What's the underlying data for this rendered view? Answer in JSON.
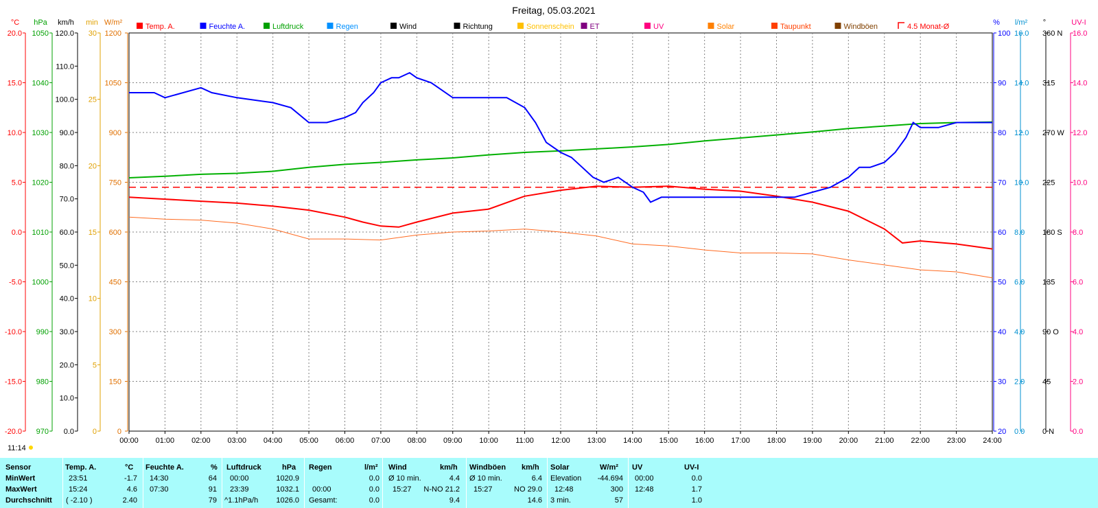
{
  "chart_data": {
    "type": "line",
    "title": "Freitag, 05.03.2021",
    "x_ticks": [
      "00:00",
      "01:00",
      "02:00",
      "03:00",
      "04:00",
      "05:00",
      "06:00",
      "07:00",
      "08:00",
      "09:00",
      "10:00",
      "11:00",
      "12:00",
      "13:00",
      "14:00",
      "15:00",
      "16:00",
      "17:00",
      "18:00",
      "19:00",
      "20:00",
      "21:00",
      "22:00",
      "23:00",
      "24:00"
    ],
    "xlim": [
      0,
      24
    ],
    "left_axes": [
      {
        "unit": "°C",
        "color": "#ff0000",
        "range": [
          -20,
          20
        ],
        "ticks": [
          "20.0",
          "15.0",
          "10.0",
          "5.0",
          "0.0",
          "-5.0",
          "-10.0",
          "-15.0",
          "-20.0"
        ]
      },
      {
        "unit": "hPa",
        "color": "#00a000",
        "range": [
          970,
          1050
        ],
        "ticks": [
          "1050",
          "1040",
          "1030",
          "1020",
          "1010",
          "1000",
          "990",
          "980",
          "970"
        ]
      },
      {
        "unit": "km/h",
        "color": "#000000",
        "range": [
          0,
          120
        ],
        "ticks": [
          "120.0",
          "110.0",
          "100.0",
          "90.0",
          "80.0",
          "70.0",
          "60.0",
          "50.0",
          "40.0",
          "30.0",
          "20.0",
          "10.0",
          "0.0"
        ]
      },
      {
        "unit": "min",
        "color": "#e0a000",
        "range": [
          0,
          30
        ],
        "ticks": [
          "30",
          "25",
          "20",
          "15",
          "10",
          "5",
          "0"
        ]
      },
      {
        "unit": "W/m²",
        "color": "#e07000",
        "range": [
          0,
          1200
        ],
        "ticks": [
          "1200",
          "1050",
          "900",
          "750",
          "600",
          "450",
          "300",
          "150",
          "0"
        ]
      }
    ],
    "right_axes": [
      {
        "unit": "%",
        "color": "#0000ff",
        "range": [
          20,
          100
        ],
        "ticks": [
          "100",
          "90",
          "80",
          "70",
          "60",
          "50",
          "40",
          "30",
          "20"
        ]
      },
      {
        "unit": "l/m²",
        "color": "#0090d0",
        "range": [
          0,
          16
        ],
        "ticks": [
          "16.0",
          "14.0",
          "12.0",
          "10.0",
          "8.0",
          "6.0",
          "4.0",
          "2.0",
          "0.0"
        ]
      },
      {
        "unit": "°",
        "color": "#000000",
        "range": [
          0,
          360
        ],
        "ticks": [
          "360 N",
          "315",
          "270 W",
          "225",
          "180 S",
          "135",
          "90 O",
          "45",
          "0 N"
        ]
      },
      {
        "unit": "UV-I",
        "color": "#ff0080",
        "range": [
          0,
          16
        ],
        "ticks": [
          "16.0",
          "14.0",
          "12.0",
          "10.0",
          "8.0",
          "6.0",
          "4.0",
          "2.0",
          "0.0"
        ]
      }
    ],
    "legend": [
      {
        "name": "Temp. A.",
        "color": "#ff0000"
      },
      {
        "name": "Feuchte A.",
        "color": "#0000ff"
      },
      {
        "name": "Luftdruck",
        "color": "#00a000"
      },
      {
        "name": "Regen",
        "color": "#0090ff"
      },
      {
        "name": "Wind",
        "color": "#000000"
      },
      {
        "name": "Richtung",
        "color": "#000000"
      },
      {
        "name": "Sonnenschein",
        "color": "#ffc000"
      },
      {
        "name": "ET",
        "color": "#800080"
      },
      {
        "name": "UV",
        "color": "#ff0080"
      },
      {
        "name": "Solar",
        "color": "#ff8000"
      },
      {
        "name": "Taupunkt",
        "color": "#ff4000"
      },
      {
        "name": "Windböen",
        "color": "#804000"
      },
      {
        "name": "4.5 Monat-Ø",
        "color": "#ff0000"
      }
    ],
    "series": [
      {
        "name": "Temp. A.",
        "color": "#ff0000",
        "axis": "°C",
        "x": [
          0,
          1,
          2,
          3,
          4,
          5,
          6,
          6.5,
          7,
          7.5,
          8,
          9,
          10,
          11,
          12,
          13,
          14,
          15,
          16,
          17,
          18,
          19,
          20,
          21,
          21.5,
          22,
          23,
          24
        ],
        "y": [
          3.5,
          3.3,
          3.1,
          2.9,
          2.6,
          2.2,
          1.5,
          1.0,
          0.6,
          0.5,
          1.0,
          1.9,
          2.3,
          3.6,
          4.2,
          4.6,
          4.5,
          4.6,
          4.3,
          4.1,
          3.6,
          3.0,
          2.1,
          0.3,
          -1.1,
          -0.9,
          -1.2,
          -1.7
        ]
      },
      {
        "name": "Taupunkt",
        "color": "#ff6a20",
        "axis": "°C",
        "x": [
          0,
          1,
          2,
          3,
          4,
          5,
          6,
          7,
          8,
          9,
          10,
          11,
          12,
          13,
          14,
          15,
          16,
          17,
          18,
          19,
          20,
          21,
          22,
          23,
          24
        ],
        "y": [
          1.5,
          1.3,
          1.2,
          0.9,
          0.3,
          -0.7,
          -0.7,
          -0.8,
          -0.3,
          0.0,
          0.1,
          0.3,
          0.0,
          -0.4,
          -1.2,
          -1.4,
          -1.8,
          -2.1,
          -2.1,
          -2.2,
          -2.8,
          -3.3,
          -3.8,
          -4.0,
          -4.6
        ]
      },
      {
        "name": "Luftdruck",
        "color": "#00b000",
        "axis": "hPa",
        "x": [
          0,
          1,
          2,
          3,
          4,
          5,
          6,
          7,
          8,
          9,
          10,
          11,
          12,
          13,
          14,
          15,
          16,
          17,
          18,
          19,
          20,
          21,
          22,
          23,
          24
        ],
        "y": [
          1020.9,
          1021.2,
          1021.6,
          1021.8,
          1022.2,
          1023.0,
          1023.6,
          1024.0,
          1024.5,
          1024.9,
          1025.5,
          1026.0,
          1026.3,
          1026.7,
          1027.1,
          1027.6,
          1028.3,
          1028.9,
          1029.5,
          1030.1,
          1030.8,
          1031.3,
          1031.8,
          1032.0,
          1032.1
        ]
      },
      {
        "name": "Feuchte A.",
        "color": "#0000ff",
        "axis": "%",
        "x": [
          0,
          0.7,
          1,
          2,
          2.3,
          3,
          4,
          4.5,
          5,
          5.5,
          6,
          6.3,
          6.5,
          6.8,
          7,
          7.3,
          7.5,
          7.8,
          8,
          8.4,
          9,
          9.5,
          10,
          10.5,
          11,
          11.3,
          11.6,
          12,
          12.3,
          12.6,
          12.9,
          13.2,
          13.6,
          14,
          14.3,
          14.5,
          14.8,
          15.2,
          15.6,
          16,
          16.5,
          17,
          17.5,
          18,
          18.5,
          19,
          19.5,
          20,
          20.3,
          20.6,
          21,
          21.3,
          21.6,
          21.8,
          22,
          22.5,
          23,
          23.5,
          24
        ],
        "y": [
          88,
          88,
          87,
          89,
          88,
          87,
          86,
          85,
          82,
          82,
          83,
          84,
          86,
          88,
          90,
          91,
          91,
          92,
          91,
          90,
          87,
          87,
          87,
          87,
          85,
          82,
          78,
          76,
          75,
          73,
          71,
          70,
          71,
          69,
          68,
          66,
          67,
          67,
          67,
          67,
          67,
          67,
          67,
          67,
          67,
          68,
          69,
          71,
          73,
          73,
          74,
          76,
          79,
          82,
          81,
          81,
          82,
          82,
          82
        ]
      }
    ],
    "reference_line": {
      "name": "4.5 Monat-Ø",
      "axis": "°C",
      "value": 4.5
    },
    "time_start": "11:14"
  },
  "stats": {
    "headers": {
      "sensor": "Sensor",
      "temp": "Temp. A.",
      "temp_unit": "°C",
      "hum": "Feuchte A.",
      "hum_unit": "%",
      "press": "Luftdruck",
      "press_unit": "hPa",
      "rain": "Regen",
      "rain_unit": "l/m²",
      "wind": "Wind",
      "wind_unit": "km/h",
      "gust": "Windböen",
      "gust_unit": "km/h",
      "solar": "Solar",
      "solar_unit": "W/m²",
      "uv": "UV",
      "uvi": "UV-I"
    },
    "row_labels": {
      "min": "MinWert",
      "max": "MaxWert",
      "avg": "Durchschnitt"
    },
    "temp": {
      "min_time": "23:51",
      "min_val": "-1.7",
      "max_time": "15:24",
      "max_val": "4.6",
      "avg_extra": "( -2.10 )",
      "avg_val": "2.40"
    },
    "hum": {
      "min_time": "14:30",
      "min_val": "64",
      "max_time": "07:30",
      "max_val": "91",
      "avg_val": "79"
    },
    "press": {
      "min_time": "00:00",
      "min_val": "1020.9",
      "max_time": "23:39",
      "max_val": "1032.1",
      "avg_extra": "^1.1hPa/h",
      "avg_val": "1026.0"
    },
    "rain": {
      "min_val": "0.0",
      "max_time": "00:00",
      "max_val": "0.0",
      "avg_label": "Gesamt:",
      "avg_val": "0.0"
    },
    "wind": {
      "min_label": "Ø 10 min.",
      "min_val": "4.4",
      "max_time": "15:27",
      "max_dir": "N-NO 21.2",
      "avg_val": "9.4"
    },
    "gust": {
      "min_label": "Ø 10 min.",
      "min_val": "6.4",
      "max_time": "15:27",
      "max_dir": "NO 29.0",
      "avg_val": "14.6"
    },
    "solar": {
      "min_label": "Elevation",
      "min_val": "-44.694",
      "max_time": "12:48",
      "max_val": "300",
      "avg_label": "3 min.",
      "avg_val": "57"
    },
    "uv": {
      "min_time": "00:00",
      "min_val": "0.0",
      "max_time": "12:48",
      "max_val": "1.7",
      "avg_val": "1.0"
    }
  }
}
